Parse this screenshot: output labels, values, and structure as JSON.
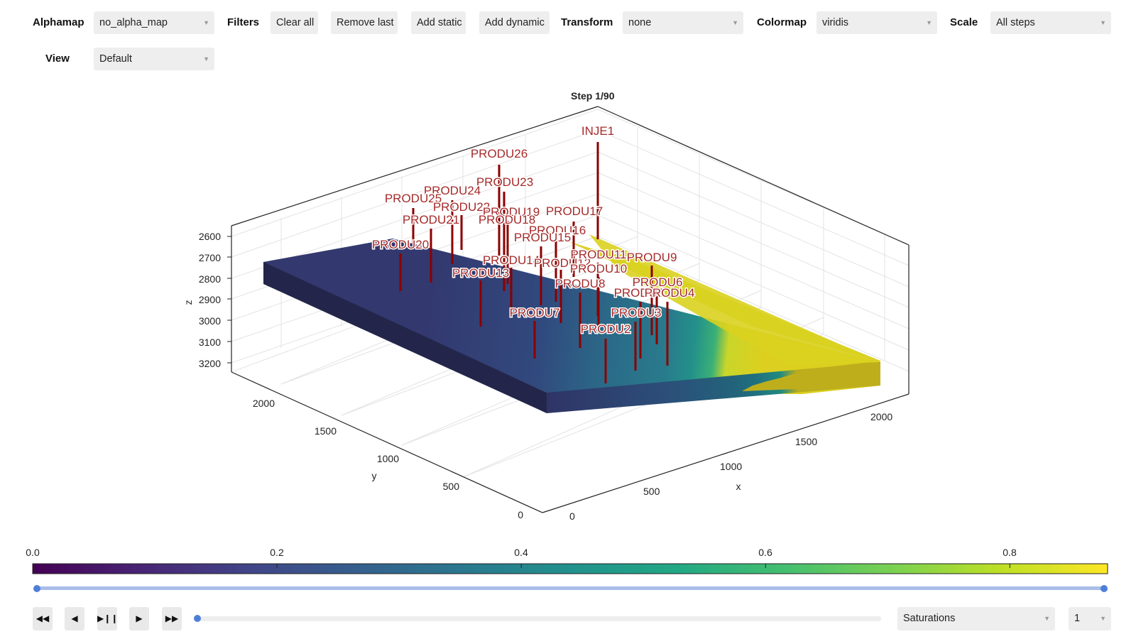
{
  "toolbar": {
    "alphamap_label": "Alphamap",
    "alphamap_value": "no_alpha_map",
    "filters_label": "Filters",
    "clear_all": "Clear all",
    "remove_last": "Remove last",
    "add_static": "Add static",
    "add_dynamic": "Add dynamic",
    "transform_label": "Transform",
    "transform_value": "none",
    "colormap_label": "Colormap",
    "colormap_value": "viridis",
    "scale_label": "Scale",
    "scale_value": "All steps",
    "view_label": "View",
    "view_value": "Default"
  },
  "plot": {
    "title": "Step 1/90",
    "z_label": "z",
    "y_label": "y",
    "x_label": "x",
    "z_ticks": [
      "2600",
      "2700",
      "2800",
      "2900",
      "3000",
      "3100",
      "3200"
    ],
    "y_ticks": [
      "2000",
      "1500",
      "1000",
      "500",
      "0"
    ],
    "x_ticks": [
      "0",
      "500",
      "1000",
      "1500",
      "2000"
    ],
    "wells": [
      "INJE1",
      "PRODU26",
      "PRODU23",
      "PRODU24",
      "PRODU25",
      "PRODU22",
      "PRODU19",
      "PRODU18",
      "PRODU21",
      "PRODU17",
      "PRODU16",
      "PRODU15",
      "PRODU20",
      "PRODU14",
      "PRODU12",
      "PRODU11",
      "PRODU9",
      "PRODU13",
      "PRODU10",
      "PRODU8",
      "PRODU6",
      "PRODU5",
      "PRODU4",
      "PRODU7",
      "PRODU3",
      "PRODU2"
    ],
    "well_color": "#8b0000",
    "label_color": "#a52a2a"
  },
  "colorbar": {
    "ticks": [
      "0.0",
      "0.2",
      "0.4",
      "0.6",
      "0.8"
    ],
    "tick_values": [
      0.0,
      0.2,
      0.4,
      0.6,
      0.8
    ],
    "range": [
      0,
      0.88
    ],
    "colormap": "viridis"
  },
  "range_slider": {
    "low": 0.0,
    "high": 1.0,
    "color": "#4e7fd8",
    "track_color": "#a9bde8"
  },
  "playback": {
    "rewind_icon": "fast-rewind-icon",
    "prev_icon": "step-back-icon",
    "playpause_icon": "play-pause-icon",
    "play_icon": "play-icon",
    "forward_icon": "fast-forward-icon",
    "step_position": 0.0,
    "field_value": "Saturations",
    "layer_value": "1"
  }
}
